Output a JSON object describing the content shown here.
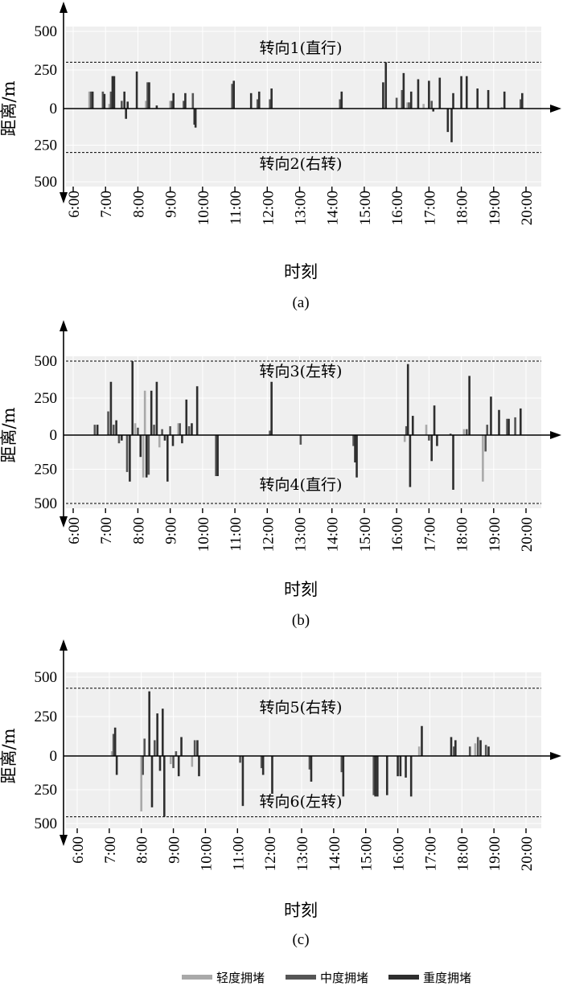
{
  "chart_data": [
    {
      "type": "bar",
      "caption": "(a)",
      "xlabel": "时刻",
      "ylabel": "距离/m",
      "yticks": [
        "500",
        "250",
        "0",
        "250",
        "500"
      ],
      "xticks": [
        "6:00",
        "7:00",
        "8:00",
        "9:00",
        "10:00",
        "11:00",
        "12:00",
        "13:00",
        "14:00",
        "15:00",
        "16:00",
        "17:00",
        "18:00",
        "19:00",
        "20:00"
      ],
      "xlim": [
        6.0,
        20.0
      ],
      "ylim": [
        -500,
        500
      ],
      "upper_label": "转向1(直行)",
      "lower_label": "转向2(右转)",
      "upper_threshold": 300,
      "lower_threshold": -300,
      "bars": [
        {
          "time": "6:30",
          "severity": 0,
          "value": 110
        },
        {
          "time": "6:33",
          "severity": 1,
          "value": 110
        },
        {
          "time": "6:36",
          "severity": 2,
          "value": 110
        },
        {
          "time": "6:55",
          "severity": 1,
          "value": 110
        },
        {
          "time": "6:58",
          "severity": 2,
          "value": 95
        },
        {
          "time": "7:07",
          "severity": 0,
          "value": 30
        },
        {
          "time": "7:10",
          "severity": 1,
          "value": 110
        },
        {
          "time": "7:13",
          "severity": 2,
          "value": 210
        },
        {
          "time": "7:16",
          "severity": 2,
          "value": 210
        },
        {
          "time": "7:30",
          "severity": 1,
          "value": 50
        },
        {
          "time": "7:35",
          "severity": 2,
          "value": 110
        },
        {
          "time": "7:38",
          "severity": 2,
          "value": -70
        },
        {
          "time": "7:41",
          "severity": 2,
          "value": 45
        },
        {
          "time": "7:58",
          "severity": 2,
          "value": 240
        },
        {
          "time": "8:15",
          "severity": 0,
          "value": 50
        },
        {
          "time": "8:18",
          "severity": 1,
          "value": 170
        },
        {
          "time": "8:21",
          "severity": 2,
          "value": 170
        },
        {
          "time": "8:35",
          "severity": 2,
          "value": 20
        },
        {
          "time": "9:00",
          "severity": 0,
          "value": 50
        },
        {
          "time": "9:03",
          "severity": 1,
          "value": 50
        },
        {
          "time": "9:06",
          "severity": 2,
          "value": 100
        },
        {
          "time": "9:25",
          "severity": 1,
          "value": 50
        },
        {
          "time": "9:28",
          "severity": 2,
          "value": 100
        },
        {
          "time": "9:42",
          "severity": 1,
          "value": 100
        },
        {
          "time": "9:45",
          "severity": 2,
          "value": -110
        },
        {
          "time": "9:47",
          "severity": 2,
          "value": -130
        },
        {
          "time": "10:55",
          "severity": 1,
          "value": 160
        },
        {
          "time": "10:58",
          "severity": 2,
          "value": 180
        },
        {
          "time": "11:30",
          "severity": 2,
          "value": 100
        },
        {
          "time": "11:42",
          "severity": 1,
          "value": 60
        },
        {
          "time": "11:45",
          "severity": 2,
          "value": 110
        },
        {
          "time": "12:05",
          "severity": 1,
          "value": 60
        },
        {
          "time": "12:08",
          "severity": 2,
          "value": 130
        },
        {
          "time": "14:15",
          "severity": 1,
          "value": 60
        },
        {
          "time": "14:18",
          "severity": 2,
          "value": 110
        },
        {
          "time": "15:35",
          "severity": 2,
          "value": 170
        },
        {
          "time": "15:40",
          "severity": 2,
          "value": 300
        },
        {
          "time": "16:00",
          "severity": 1,
          "value": 70
        },
        {
          "time": "16:10",
          "severity": 1,
          "value": 120
        },
        {
          "time": "16:13",
          "severity": 2,
          "value": 230
        },
        {
          "time": "16:20",
          "severity": 0,
          "value": 40
        },
        {
          "time": "16:23",
          "severity": 1,
          "value": 40
        },
        {
          "time": "16:27",
          "severity": 2,
          "value": 110
        },
        {
          "time": "16:40",
          "severity": 2,
          "value": 190
        },
        {
          "time": "16:50",
          "severity": 0,
          "value": 30
        },
        {
          "time": "17:00",
          "severity": 2,
          "value": 180
        },
        {
          "time": "17:05",
          "severity": 1,
          "value": 50
        },
        {
          "time": "17:08",
          "severity": 2,
          "value": -20
        },
        {
          "time": "17:20",
          "severity": 2,
          "value": 200
        },
        {
          "time": "17:35",
          "severity": 2,
          "value": -160
        },
        {
          "time": "17:42",
          "severity": 2,
          "value": -230
        },
        {
          "time": "17:45",
          "severity": 2,
          "value": 100
        },
        {
          "time": "18:00",
          "severity": 2,
          "value": 210
        },
        {
          "time": "18:10",
          "severity": 2,
          "value": 210
        },
        {
          "time": "18:30",
          "severity": 2,
          "value": 130
        },
        {
          "time": "18:50",
          "severity": 2,
          "value": 120
        },
        {
          "time": "19:15",
          "severity": 0,
          "value": 10
        },
        {
          "time": "19:20",
          "severity": 2,
          "value": 110
        },
        {
          "time": "19:50",
          "severity": 1,
          "value": 60
        },
        {
          "time": "19:53",
          "severity": 2,
          "value": 100
        }
      ]
    },
    {
      "type": "bar",
      "caption": "(b)",
      "xlabel": "时刻",
      "ylabel": "距离/m",
      "yticks": [
        "500",
        "250",
        "0",
        "250",
        "500"
      ],
      "xticks": [
        "6:00",
        "7:00",
        "8:00",
        "9:00",
        "10:00",
        "11:00",
        "12:00",
        "13:00",
        "14:00",
        "15:00",
        "16:00",
        "17:00",
        "18:00",
        "19:00",
        "20:00"
      ],
      "xlim": [
        6.0,
        20.0
      ],
      "ylim": [
        -500,
        500
      ],
      "upper_label": "转向3(左转)",
      "lower_label": "转向4(直行)",
      "upper_threshold": 500,
      "lower_threshold": -500,
      "bars": [
        {
          "time": "6:40",
          "severity": 1,
          "value": 70
        },
        {
          "time": "6:45",
          "severity": 2,
          "value": 70
        },
        {
          "time": "7:05",
          "severity": 1,
          "value": 160
        },
        {
          "time": "7:10",
          "severity": 2,
          "value": 360
        },
        {
          "time": "7:15",
          "severity": 1,
          "value": 70
        },
        {
          "time": "7:20",
          "severity": 2,
          "value": 100
        },
        {
          "time": "7:25",
          "severity": 1,
          "value": -60
        },
        {
          "time": "7:30",
          "severity": 2,
          "value": -40
        },
        {
          "time": "7:40",
          "severity": 1,
          "value": -270
        },
        {
          "time": "7:45",
          "severity": 2,
          "value": -340
        },
        {
          "time": "7:50",
          "severity": 2,
          "value": 500
        },
        {
          "time": "7:55",
          "severity": 0,
          "value": 80
        },
        {
          "time": "8:00",
          "severity": 1,
          "value": 50
        },
        {
          "time": "8:05",
          "severity": 2,
          "value": -160
        },
        {
          "time": "8:10",
          "severity": 0,
          "value": -310
        },
        {
          "time": "8:13",
          "severity": 0,
          "value": 300
        },
        {
          "time": "8:16",
          "severity": 2,
          "value": -310
        },
        {
          "time": "8:20",
          "severity": 1,
          "value": -290
        },
        {
          "time": "8:25",
          "severity": 2,
          "value": 300
        },
        {
          "time": "8:30",
          "severity": 1,
          "value": 70
        },
        {
          "time": "8:35",
          "severity": 2,
          "value": 360
        },
        {
          "time": "8:40",
          "severity": 0,
          "value": -90
        },
        {
          "time": "8:45",
          "severity": 1,
          "value": 40
        },
        {
          "time": "8:50",
          "severity": 2,
          "value": -40
        },
        {
          "time": "8:55",
          "severity": 2,
          "value": -340
        },
        {
          "time": "9:00",
          "severity": 1,
          "value": 60
        },
        {
          "time": "9:05",
          "severity": 2,
          "value": -80
        },
        {
          "time": "9:15",
          "severity": 0,
          "value": 80
        },
        {
          "time": "9:18",
          "severity": 1,
          "value": 80
        },
        {
          "time": "9:22",
          "severity": 2,
          "value": -60
        },
        {
          "time": "9:30",
          "severity": 2,
          "value": 240
        },
        {
          "time": "9:35",
          "severity": 1,
          "value": 60
        },
        {
          "time": "9:40",
          "severity": 2,
          "value": 80
        },
        {
          "time": "9:50",
          "severity": 2,
          "value": 330
        },
        {
          "time": "10:25",
          "severity": 1,
          "value": -300
        },
        {
          "time": "10:28",
          "severity": 2,
          "value": -300
        },
        {
          "time": "12:05",
          "severity": 1,
          "value": 30
        },
        {
          "time": "12:08",
          "severity": 2,
          "value": 360
        },
        {
          "time": "13:02",
          "severity": 1,
          "value": -70
        },
        {
          "time": "14:40",
          "severity": 1,
          "value": -80
        },
        {
          "time": "14:43",
          "severity": 2,
          "value": -200
        },
        {
          "time": "14:46",
          "severity": 2,
          "value": -310
        },
        {
          "time": "16:15",
          "severity": 0,
          "value": -50
        },
        {
          "time": "16:18",
          "severity": 1,
          "value": 60
        },
        {
          "time": "16:21",
          "severity": 2,
          "value": 480
        },
        {
          "time": "16:25",
          "severity": 2,
          "value": -380
        },
        {
          "time": "16:30",
          "severity": 2,
          "value": 130
        },
        {
          "time": "16:55",
          "severity": 0,
          "value": 70
        },
        {
          "time": "17:00",
          "severity": 1,
          "value": -40
        },
        {
          "time": "17:05",
          "severity": 2,
          "value": -190
        },
        {
          "time": "17:10",
          "severity": 2,
          "value": 200
        },
        {
          "time": "17:15",
          "severity": 2,
          "value": -80
        },
        {
          "time": "17:40",
          "severity": 1,
          "value": 10
        },
        {
          "time": "17:45",
          "severity": 2,
          "value": -400
        },
        {
          "time": "18:05",
          "severity": 0,
          "value": 40
        },
        {
          "time": "18:10",
          "severity": 1,
          "value": 40
        },
        {
          "time": "18:15",
          "severity": 2,
          "value": 400
        },
        {
          "time": "18:40",
          "severity": 0,
          "value": -340
        },
        {
          "time": "18:45",
          "severity": 1,
          "value": -120
        },
        {
          "time": "18:48",
          "severity": 1,
          "value": 70
        },
        {
          "time": "18:55",
          "severity": 2,
          "value": 260
        },
        {
          "time": "19:10",
          "severity": 2,
          "value": 170
        },
        {
          "time": "19:25",
          "severity": 1,
          "value": 110
        },
        {
          "time": "19:28",
          "severity": 2,
          "value": 110
        },
        {
          "time": "19:40",
          "severity": 1,
          "value": 120
        },
        {
          "time": "19:50",
          "severity": 2,
          "value": 180
        }
      ]
    },
    {
      "type": "bar",
      "caption": "(c)",
      "xlabel": "时刻",
      "ylabel": "距离/m",
      "yticks": [
        "500",
        "250",
        "0",
        "250",
        "500"
      ],
      "xticks": [
        "6:00",
        "7:00",
        "8:00",
        "9:00",
        "10:00",
        "11:00",
        "12:00",
        "13:00",
        "14:00",
        "15:00",
        "16:00",
        "17:00",
        "18:00",
        "19:00",
        "20:00"
      ],
      "xlim": [
        6.0,
        20.0
      ],
      "ylim": [
        -500,
        500
      ],
      "upper_label": "转向5(右转)",
      "lower_label": "转向6(左转)",
      "upper_threshold": 430,
      "lower_threshold": -450,
      "bars": [
        {
          "time": "7:05",
          "severity": 0,
          "value": 30
        },
        {
          "time": "7:08",
          "severity": 1,
          "value": 140
        },
        {
          "time": "7:11",
          "severity": 2,
          "value": 180
        },
        {
          "time": "7:14",
          "severity": 2,
          "value": -140
        },
        {
          "time": "8:00",
          "severity": 0,
          "value": -410
        },
        {
          "time": "8:03",
          "severity": 1,
          "value": -140
        },
        {
          "time": "8:06",
          "severity": 1,
          "value": 110
        },
        {
          "time": "8:15",
          "severity": 2,
          "value": 410
        },
        {
          "time": "8:20",
          "severity": 2,
          "value": -380
        },
        {
          "time": "8:25",
          "severity": 1,
          "value": 100
        },
        {
          "time": "8:30",
          "severity": 2,
          "value": 270
        },
        {
          "time": "8:35",
          "severity": 2,
          "value": -110
        },
        {
          "time": "8:40",
          "severity": 2,
          "value": 300
        },
        {
          "time": "8:43",
          "severity": 2,
          "value": -450
        },
        {
          "time": "8:55",
          "severity": 0,
          "value": -60
        },
        {
          "time": "9:00",
          "severity": 1,
          "value": -90
        },
        {
          "time": "9:05",
          "severity": 1,
          "value": 30
        },
        {
          "time": "9:10",
          "severity": 2,
          "value": -150
        },
        {
          "time": "9:15",
          "severity": 2,
          "value": 120
        },
        {
          "time": "9:35",
          "severity": 0,
          "value": -80
        },
        {
          "time": "9:40",
          "severity": 1,
          "value": 100
        },
        {
          "time": "9:45",
          "severity": 2,
          "value": 100
        },
        {
          "time": "9:48",
          "severity": 2,
          "value": -150
        },
        {
          "time": "11:10",
          "severity": 2,
          "value": -370
        },
        {
          "time": "11:05",
          "severity": 1,
          "value": -50
        },
        {
          "time": "11:45",
          "severity": 1,
          "value": -90
        },
        {
          "time": "11:48",
          "severity": 2,
          "value": -140
        },
        {
          "time": "12:05",
          "severity": 2,
          "value": -280
        },
        {
          "time": "13:15",
          "severity": 1,
          "value": -100
        },
        {
          "time": "13:18",
          "severity": 2,
          "value": -190
        },
        {
          "time": "14:15",
          "severity": 1,
          "value": -120
        },
        {
          "time": "14:18",
          "severity": 2,
          "value": -300
        },
        {
          "time": "15:15",
          "severity": 1,
          "value": -290
        },
        {
          "time": "15:18",
          "severity": 2,
          "value": -300
        },
        {
          "time": "15:22",
          "severity": 2,
          "value": -300
        },
        {
          "time": "15:40",
          "severity": 2,
          "value": -290
        },
        {
          "time": "16:00",
          "severity": 2,
          "value": -150
        },
        {
          "time": "16:05",
          "severity": 2,
          "value": -150
        },
        {
          "time": "16:15",
          "severity": 2,
          "value": -160
        },
        {
          "time": "16:25",
          "severity": 2,
          "value": -300
        },
        {
          "time": "16:40",
          "severity": 0,
          "value": 60
        },
        {
          "time": "16:45",
          "severity": 2,
          "value": 190
        },
        {
          "time": "17:40",
          "severity": 2,
          "value": 120
        },
        {
          "time": "17:45",
          "severity": 1,
          "value": 60
        },
        {
          "time": "17:48",
          "severity": 2,
          "value": 100
        },
        {
          "time": "18:15",
          "severity": 1,
          "value": 60
        },
        {
          "time": "18:25",
          "severity": 0,
          "value": 80
        },
        {
          "time": "18:30",
          "severity": 1,
          "value": 120
        },
        {
          "time": "18:35",
          "severity": 2,
          "value": 100
        },
        {
          "time": "18:45",
          "severity": 1,
          "value": 70
        },
        {
          "time": "18:50",
          "severity": 2,
          "value": 60
        }
      ]
    }
  ],
  "legend": {
    "items": [
      {
        "label": "轻度拥堵",
        "color": "#a9a9a9"
      },
      {
        "label": "中度拥堵",
        "color": "#555555"
      },
      {
        "label": "重度拥堵",
        "color": "#2e2e2e"
      }
    ]
  },
  "colors": {
    "panel_background": "#efefef",
    "axis": "#000000"
  }
}
